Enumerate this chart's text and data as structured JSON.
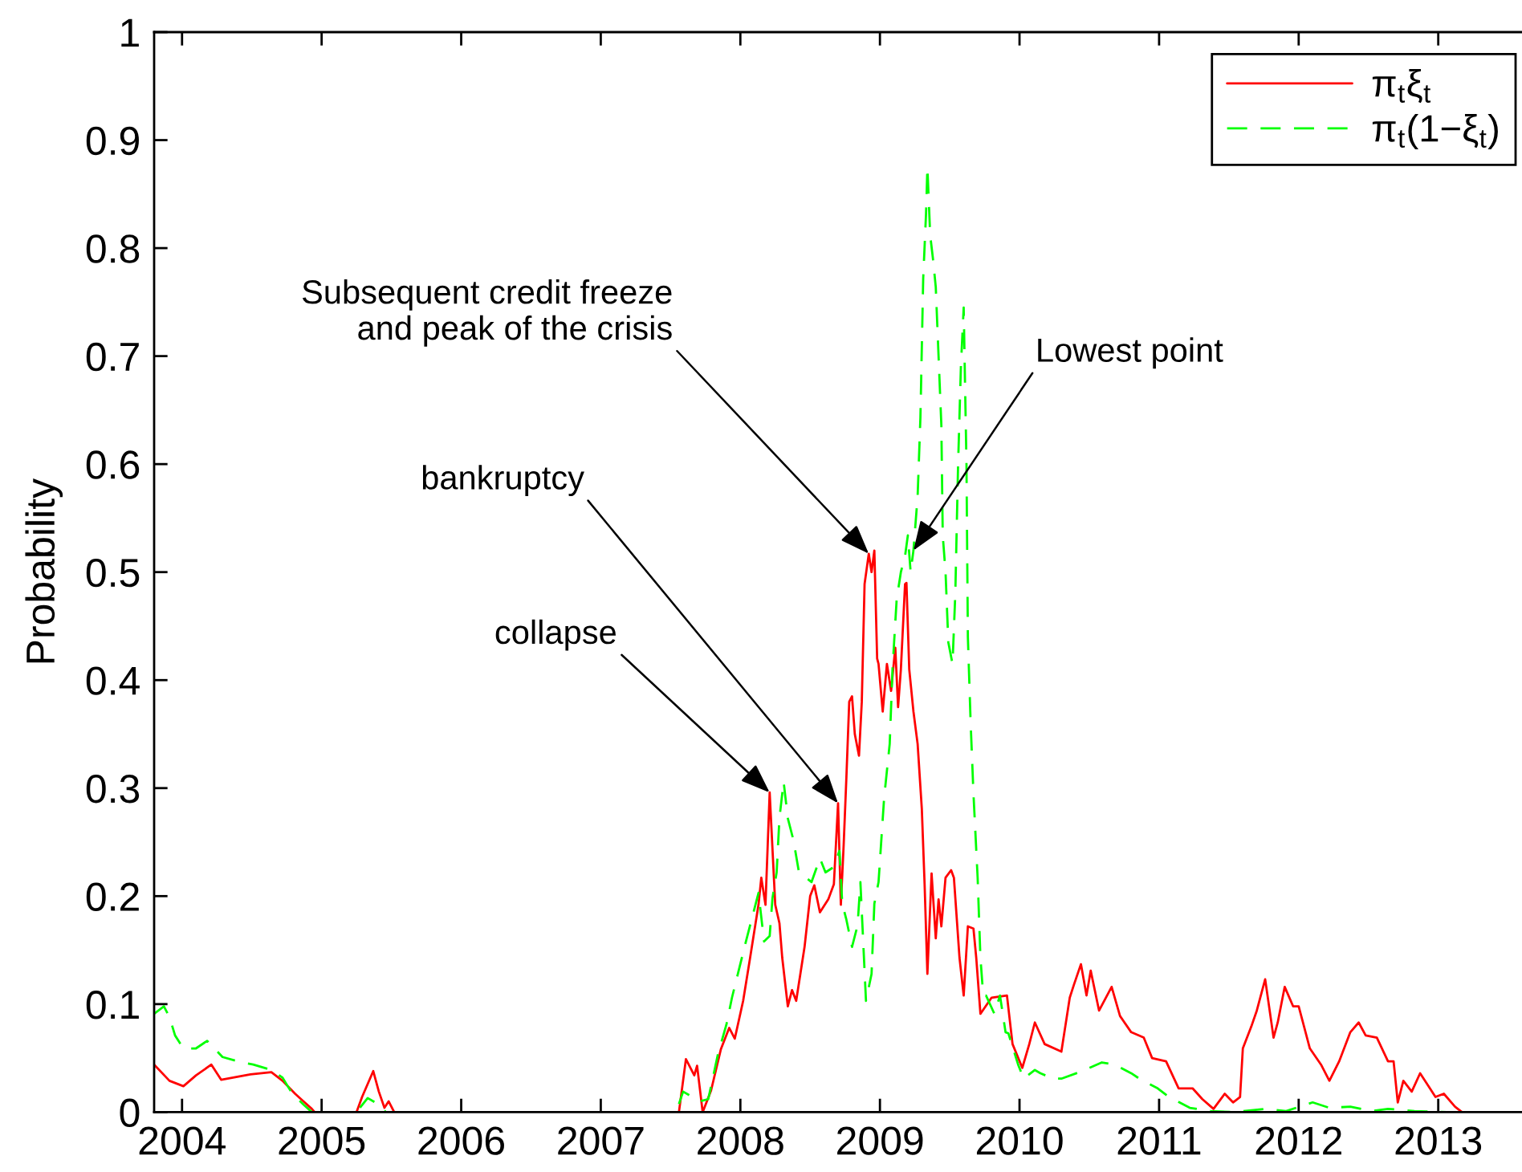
{
  "chart_data": {
    "type": "line",
    "ylabel": "Probability",
    "xlim": [
      2003.8,
      2013.6
    ],
    "xticks": [
      2004,
      2005,
      2006,
      2007,
      2008,
      2009,
      2010,
      2011,
      2012,
      2013
    ],
    "ylim": [
      0,
      1
    ],
    "yticks": [
      0,
      0.1,
      0.2,
      0.3,
      0.4,
      0.5,
      0.6,
      0.7,
      0.8,
      0.9,
      1
    ],
    "legend": "top right",
    "marker": "none",
    "series": [
      {
        "name": "π$_{t}$ξ$_{t}$",
        "color": "#ff0000",
        "line_style": "solid",
        "x": [
          2003.8,
          2003.91,
          2004.01,
          2004.1,
          2004.21,
          2004.28,
          2004.49,
          2004.64,
          2004.72,
          2004.81,
          2004.87,
          2004.93,
          2004.95,
          2005.25,
          2005.29,
          2005.37,
          2005.41,
          2005.45,
          2005.48,
          2005.52,
          2007.56,
          2007.61,
          2007.67,
          2007.69,
          2007.73,
          2007.79,
          2007.86,
          2007.92,
          2007.96,
          2008.02,
          2008.07,
          2008.13,
          2008.15,
          2008.18,
          2008.21,
          2008.25,
          2008.28,
          2008.3,
          2008.34,
          2008.37,
          2008.4,
          2008.46,
          2008.5,
          2008.53,
          2008.57,
          2008.63,
          2008.67,
          2008.7,
          2008.72,
          2008.74,
          2008.76,
          2008.78,
          2008.8,
          2008.82,
          2008.85,
          2008.87,
          2008.89,
          2008.92,
          2008.94,
          2008.96,
          2008.98,
          2008.99,
          2009.02,
          2009.05,
          2009.08,
          2009.11,
          2009.13,
          2009.15,
          2009.18,
          2009.19,
          2009.21,
          2009.24,
          2009.27,
          2009.3,
          2009.32,
          2009.34,
          2009.37,
          2009.4,
          2009.42,
          2009.44,
          2009.47,
          2009.51,
          2009.53,
          2009.57,
          2009.6,
          2009.63,
          2009.67,
          2009.69,
          2009.72,
          2009.8,
          2009.91,
          2009.95,
          2010.02,
          2010.07,
          2010.11,
          2010.18,
          2010.3,
          2010.36,
          2010.39,
          2010.44,
          2010.48,
          2010.51,
          2010.57,
          2010.66,
          2010.72,
          2010.8,
          2010.89,
          2010.95,
          2011.05,
          2011.14,
          2011.24,
          2011.31,
          2011.39,
          2011.47,
          2011.53,
          2011.58,
          2011.6,
          2011.66,
          2011.7,
          2011.76,
          2011.82,
          2011.85,
          2011.9,
          2011.96,
          2012.0,
          2012.08,
          2012.16,
          2012.22,
          2012.29,
          2012.37,
          2012.43,
          2012.48,
          2012.56,
          2012.64,
          2012.68,
          2012.71,
          2012.75,
          2012.81,
          2012.87,
          2012.93,
          2012.98,
          2013.04,
          2013.12,
          2013.17,
          2013.6
        ],
        "values": [
          0.044,
          0.029,
          0.024,
          0.034,
          0.044,
          0.03,
          0.035,
          0.037,
          0.029,
          0.017,
          0.01,
          0.003,
          0,
          0,
          0.014,
          0.038,
          0.019,
          0.004,
          0.01,
          0,
          0,
          0.049,
          0.034,
          0.043,
          0,
          0.02,
          0.058,
          0.078,
          0.068,
          0.103,
          0.143,
          0.192,
          0.217,
          0.192,
          0.296,
          0.192,
          0.175,
          0.143,
          0.098,
          0.113,
          0.103,
          0.153,
          0.2,
          0.21,
          0.185,
          0.197,
          0.211,
          0.286,
          0.192,
          0.247,
          0.311,
          0.38,
          0.385,
          0.35,
          0.33,
          0.38,
          0.489,
          0.517,
          0.5,
          0.52,
          0.42,
          0.415,
          0.371,
          0.415,
          0.39,
          0.43,
          0.375,
          0.41,
          0.489,
          0.49,
          0.41,
          0.371,
          0.341,
          0.281,
          0.211,
          0.128,
          0.221,
          0.161,
          0.197,
          0.172,
          0.217,
          0.224,
          0.217,
          0.143,
          0.108,
          0.172,
          0.17,
          0.143,
          0.091,
          0.106,
          0.108,
          0.063,
          0.041,
          0.063,
          0.083,
          0.063,
          0.056,
          0.106,
          0.118,
          0.137,
          0.108,
          0.131,
          0.094,
          0.116,
          0.089,
          0.074,
          0.069,
          0.05,
          0.047,
          0.022,
          0.022,
          0.012,
          0.003,
          0.017,
          0.009,
          0.014,
          0.059,
          0.079,
          0.094,
          0.123,
          0.069,
          0.083,
          0.116,
          0.098,
          0.098,
          0.059,
          0.044,
          0.029,
          0.047,
          0.074,
          0.083,
          0.071,
          0.069,
          0.047,
          0.047,
          0.009,
          0.029,
          0.019,
          0.036,
          0.024,
          0.014,
          0.017,
          0.005,
          0,
          0
        ]
      },
      {
        "name": "π$_{t}$(1−ξ$_{t}$)",
        "color": "#00ff00",
        "line_style": "dashed",
        "x": [
          2003.8,
          2003.87,
          2003.91,
          2003.95,
          2004.01,
          2004.1,
          2004.18,
          2004.29,
          2004.43,
          2004.51,
          2004.64,
          2004.72,
          2004.79,
          2004.87,
          2004.93,
          2005.25,
          2005.33,
          2005.41,
          2005.46,
          2007.54,
          2007.59,
          2007.71,
          2007.77,
          2007.84,
          2007.9,
          2007.94,
          2008.03,
          2008.07,
          2008.13,
          2008.17,
          2008.21,
          2008.23,
          2008.26,
          2008.28,
          2008.31,
          2008.34,
          2008.38,
          2008.42,
          2008.46,
          2008.51,
          2008.57,
          2008.61,
          2008.67,
          2008.71,
          2008.73,
          2008.76,
          2008.8,
          2008.84,
          2008.86,
          2008.9,
          2008.94,
          2008.96,
          2008.99,
          2009.03,
          2009.07,
          2009.09,
          2009.12,
          2009.15,
          2009.18,
          2009.2,
          2009.22,
          2009.24,
          2009.27,
          2009.29,
          2009.31,
          2009.33,
          2009.34,
          2009.36,
          2009.38,
          2009.4,
          2009.42,
          2009.44,
          2009.45,
          2009.47,
          2009.49,
          2009.52,
          2009.54,
          2009.56,
          2009.58,
          2009.6,
          2009.62,
          2009.63,
          2009.65,
          2009.67,
          2009.7,
          2009.72,
          2009.74,
          2009.76,
          2009.82,
          2009.86,
          2009.9,
          2009.92,
          2009.99,
          2010.03,
          2010.11,
          2010.15,
          2010.24,
          2010.3,
          2010.45,
          2010.59,
          2010.68,
          2010.8,
          2010.87,
          2010.99,
          2011.07,
          2011.22,
          2011.37,
          2011.53,
          2011.76,
          2011.91,
          2012.1,
          2012.22,
          2012.37,
          2012.52,
          2012.64,
          2012.83,
          2013.06,
          2013.6
        ],
        "values": [
          0.091,
          0.098,
          0.088,
          0.071,
          0.059,
          0.059,
          0.066,
          0.051,
          0.046,
          0.044,
          0.039,
          0.032,
          0.017,
          0.007,
          0,
          0,
          0.013,
          0.007,
          0,
          0,
          0.019,
          0.01,
          0.012,
          0.054,
          0.081,
          0.106,
          0.153,
          0.173,
          0.203,
          0.158,
          0.163,
          0.198,
          0.222,
          0.272,
          0.306,
          0.272,
          0.252,
          0.222,
          0.218,
          0.213,
          0.235,
          0.222,
          0.227,
          0.242,
          0.193,
          0.178,
          0.153,
          0.173,
          0.213,
          0.103,
          0.128,
          0.193,
          0.213,
          0.291,
          0.341,
          0.41,
          0.475,
          0.5,
          0.515,
          0.534,
          0.5,
          0.52,
          0.57,
          0.643,
          0.772,
          0.831,
          0.875,
          0.812,
          0.79,
          0.764,
          0.7,
          0.636,
          0.534,
          0.5,
          0.435,
          0.415,
          0.48,
          0.6,
          0.69,
          0.745,
          0.6,
          0.44,
          0.36,
          0.295,
          0.217,
          0.143,
          0.108,
          0.108,
          0.091,
          0.108,
          0.074,
          0.073,
          0.044,
          0.031,
          0.039,
          0.036,
          0.031,
          0.031,
          0.038,
          0.046,
          0.044,
          0.036,
          0.03,
          0.022,
          0.014,
          0.004,
          0.001,
          0,
          0.003,
          0.001,
          0.009,
          0.004,
          0.005,
          0.001,
          0.003,
          0.001,
          0,
          0
        ]
      }
    ],
    "annotations": [
      {
        "text": "Subsequent credit freeze\nand peak of the crisis",
        "x": 2008.92,
        "y": 0.517
      },
      {
        "text": "Lowest point",
        "x": 2009.24,
        "y": 0.52
      },
      {
        "text": "bankruptcy",
        "x": 2008.7,
        "y": 0.286
      },
      {
        "text": "collapse",
        "x": 2008.21,
        "y": 0.296
      }
    ]
  }
}
